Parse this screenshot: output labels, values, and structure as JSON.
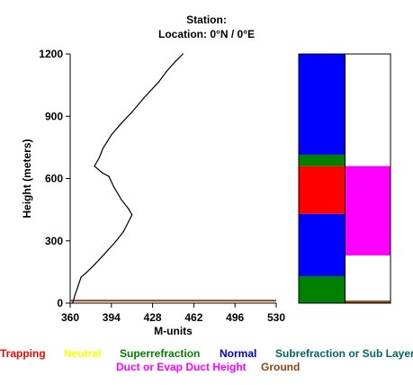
{
  "header": {
    "station_line": "Station:",
    "location_line": "Location:  0°N /  0°E"
  },
  "chart_data": {
    "type": "line",
    "xlabel": "M-units",
    "ylabel": "Height (meters)",
    "xlim": [
      360,
      530
    ],
    "ylim": [
      0,
      1200
    ],
    "x_ticks": [
      360,
      394,
      428,
      462,
      496,
      530
    ],
    "y_ticks": [
      0,
      300,
      600,
      900,
      1200
    ],
    "series": [
      {
        "color": "#000000",
        "points": [
          [
            362,
            0
          ],
          [
            364,
            40
          ],
          [
            367,
            90
          ],
          [
            369,
            125
          ],
          [
            373,
            145
          ],
          [
            380,
            185
          ],
          [
            388,
            235
          ],
          [
            398,
            300
          ],
          [
            404,
            345
          ],
          [
            411,
            425
          ],
          [
            408,
            455
          ],
          [
            402,
            500
          ],
          [
            396,
            560
          ],
          [
            392,
            610
          ],
          [
            386,
            630
          ],
          [
            380,
            660
          ],
          [
            384,
            700
          ],
          [
            387,
            745
          ],
          [
            394,
            810
          ],
          [
            402,
            865
          ],
          [
            411,
            920
          ],
          [
            421,
            990
          ],
          [
            433,
            1065
          ],
          [
            440,
            1120
          ],
          [
            447,
            1165
          ],
          [
            453,
            1200
          ]
        ]
      }
    ],
    "ground_line": {
      "y": 12,
      "color": "#8B4513"
    },
    "profile_bars": {
      "ylim": [
        0,
        1200
      ],
      "left_column": [
        {
          "category": "Superrefraction",
          "from": 0,
          "to": 130,
          "color": "#008000"
        },
        {
          "category": "Normal",
          "from": 130,
          "to": 430,
          "color": "#0000FF"
        },
        {
          "category": "Trapping",
          "from": 430,
          "to": 660,
          "color": "#FF0000"
        },
        {
          "category": "Superrefraction",
          "from": 660,
          "to": 715,
          "color": "#008000"
        },
        {
          "category": "Normal",
          "from": 715,
          "to": 1200,
          "color": "#0000FF"
        }
      ],
      "right_column": [
        {
          "category": "Ground",
          "from": 0,
          "to": 12,
          "color": "#8B4513"
        },
        {
          "category": "Duct or Evap Duct Height",
          "from": 230,
          "to": 660,
          "color": "#FF00FF"
        }
      ]
    },
    "legend": {
      "row1": [
        {
          "label": "Trapping",
          "color": "#FF0000"
        },
        {
          "label": "Neutral",
          "color": "#FFFF00"
        },
        {
          "label": "Superrefraction",
          "color": "#008000"
        },
        {
          "label": "Normal",
          "color": "#0000CC"
        },
        {
          "label": "Subrefraction or Sub Layer",
          "color": "#006666"
        }
      ],
      "row2": [
        {
          "label": "Duct or Evap Duct Height",
          "color": "#FF00FF"
        },
        {
          "label": "Ground",
          "color": "#8B4513"
        }
      ]
    }
  }
}
